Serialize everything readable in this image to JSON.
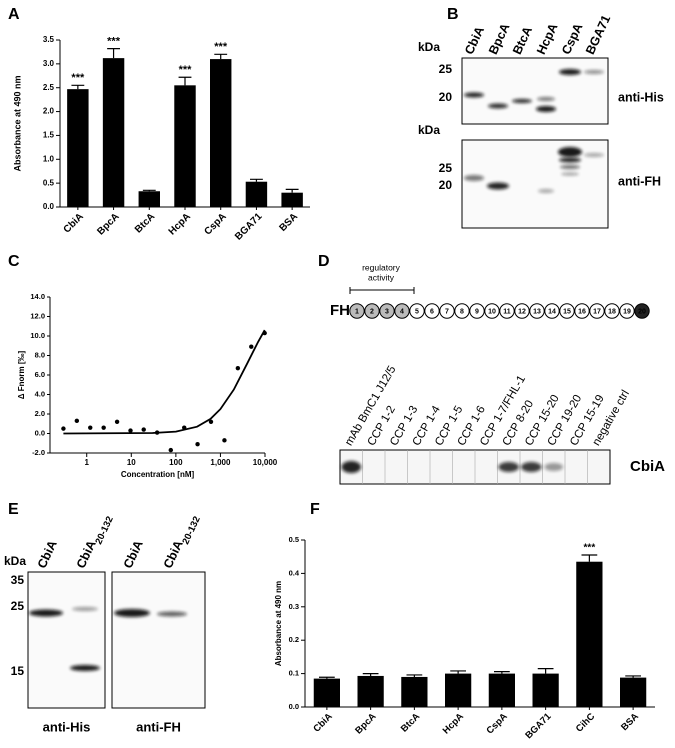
{
  "panels": [
    "A",
    "B",
    "C",
    "D",
    "E",
    "F"
  ],
  "chart_data": [
    {
      "type": "bar",
      "y_label": "Absorbance at 490 nm",
      "categories": [
        "CbiA",
        "BpcA",
        "BtcA",
        "HcpA",
        "CspA",
        "BGA71",
        "BSA"
      ],
      "values": [
        2.47,
        3.12,
        0.33,
        2.55,
        3.1,
        0.53,
        0.3
      ],
      "errors": [
        0.08,
        0.2,
        0.02,
        0.17,
        0.1,
        0.05,
        0.07
      ],
      "value_annotations": [
        "***",
        "***",
        null,
        "***",
        "***",
        null,
        null
      ],
      "color": "#000000",
      "ylim": [
        0,
        3.5
      ],
      "yticks": [
        {
          "value": 0,
          "label": "0.0"
        },
        0.5,
        {
          "value": 1,
          "label": "1.0"
        },
        1.5,
        {
          "value": 2,
          "label": "2.0"
        },
        2.5,
        {
          "value": 3,
          "label": "3.0"
        },
        3.5
      ]
    },
    {
      "type": "scatter",
      "x_label": "Concentration [nM]",
      "y_label": "Δ Fnorm [‰]",
      "log_x": true,
      "xlim": [
        0.15,
        10000
      ],
      "xticks": [
        1,
        10,
        100,
        {
          "value": 1000,
          "label": "1,000"
        },
        {
          "value": 10000,
          "label": "10,000"
        }
      ],
      "ylim": [
        -2,
        14
      ],
      "yticks": [
        {
          "value": -2,
          "label": "-2.0"
        },
        {
          "value": 0,
          "label": "0.0"
        },
        {
          "value": 2,
          "label": "2.0"
        },
        {
          "value": 4,
          "label": "4.0"
        },
        {
          "value": 6,
          "label": "6.0"
        },
        {
          "value": 8,
          "label": "8.0"
        },
        {
          "value": 10,
          "label": "10.0"
        },
        {
          "value": 12,
          "label": "12.0"
        },
        {
          "value": 14,
          "label": "14.0"
        }
      ],
      "x": [
        0.3,
        0.6,
        1.2,
        2.4,
        4.8,
        9.6,
        19,
        38,
        77,
        154,
        307,
        614,
        1230,
        2460,
        4920,
        9830
      ],
      "values": [
        0.5,
        1.3,
        0.6,
        0.6,
        1.2,
        0.3,
        0.4,
        0.1,
        -1.7,
        0.6,
        -1.1,
        1.2,
        -0.7,
        6.7,
        8.9,
        10.3
      ],
      "fit_x": [
        0.3,
        30,
        100,
        300,
        600,
        1000,
        2000,
        4000,
        7000,
        9830
      ],
      "fit_values": [
        0,
        0.05,
        0.2,
        0.7,
        1.5,
        2.5,
        4.5,
        7.2,
        9.4,
        10.6
      ],
      "color": "#000000"
    },
    {
      "type": "bar",
      "y_label": "Absorbance at 490 nm",
      "categories": [
        "CbiA",
        "BpcA",
        "BtcA",
        "HcpA",
        "CspA",
        "BGA71",
        "CihC",
        "BSA"
      ],
      "values": [
        0.085,
        0.093,
        0.09,
        0.1,
        0.1,
        0.1,
        0.435,
        0.088
      ],
      "errors": [
        0.004,
        0.007,
        0.006,
        0.008,
        0.006,
        0.015,
        0.02,
        0.005
      ],
      "value_annotations": [
        null,
        null,
        null,
        null,
        null,
        null,
        "***",
        null
      ],
      "color": "#000000",
      "ylim": [
        0,
        0.5
      ],
      "yticks": [
        {
          "value": 0,
          "label": "0.0"
        },
        0.1,
        0.2,
        0.3,
        0.4,
        0.5
      ]
    }
  ],
  "blot_b": {
    "lanes": [
      "CbiA",
      "BpcA",
      "BtcA",
      "HcpA",
      "CspA",
      "BGA71"
    ],
    "blots": [
      {
        "kda": "kDa",
        "markers": [
          "25",
          "20"
        ],
        "label": "anti-His"
      },
      {
        "kda": "kDa",
        "markers": [
          "25",
          "20"
        ],
        "label": "anti-FH"
      }
    ]
  },
  "fh_diagram": {
    "name": "FH",
    "region": [
      "regulatory",
      "activity"
    ],
    "domains": [
      "1",
      "2",
      "3",
      "4",
      "5",
      "6",
      "7",
      "8",
      "9",
      "10",
      "11",
      "12",
      "13",
      "14",
      "15",
      "16",
      "17",
      "18",
      "19",
      "20"
    ]
  },
  "blot_d": {
    "lanes": [
      "mAb BmC1 J12/5",
      "CCP 1-2",
      "CCP 1-3",
      "CCP 1-4",
      "CCP 1-5",
      "CCP 1-6",
      "CCP 1-7/FHL-1",
      "CCP 8-20",
      "CCP 15-20",
      "CCP 19-20",
      "CCP 15-19",
      "negative ctrl"
    ],
    "label": "CbiA"
  },
  "blot_e": {
    "kda": "kDa",
    "markers": [
      "35",
      "25",
      "15"
    ],
    "lanes": [
      {
        "name": "CbiA"
      },
      {
        "name": "CbiA",
        "subscript": "20-132"
      }
    ],
    "blots": [
      "anti-His",
      "anti-FH"
    ]
  }
}
